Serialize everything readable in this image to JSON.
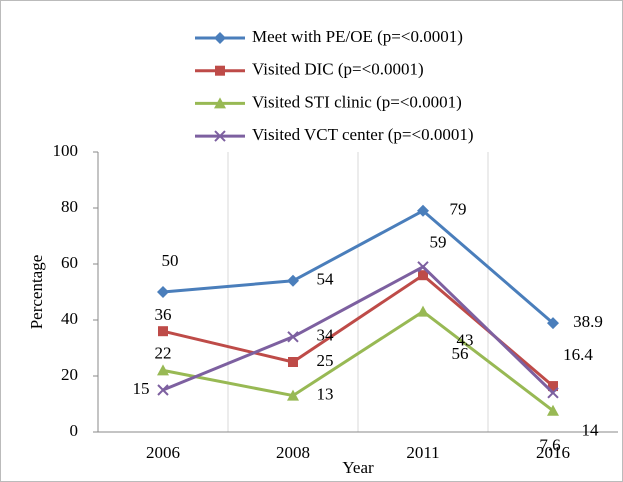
{
  "chart_data": {
    "type": "line",
    "categories": [
      "2006",
      "2008",
      "2011",
      "2016"
    ],
    "series": [
      {
        "name": "Meet with PE/OE (p=<0.0001)",
        "color": "#4a7ebb",
        "marker": "diamond",
        "values": [
          50,
          54,
          79,
          38.9
        ]
      },
      {
        "name": "Visited DIC (p=<0.0001)",
        "color": "#be4b48",
        "marker": "square",
        "values": [
          36,
          25,
          56,
          16.4
        ]
      },
      {
        "name": "Visited STI clinic (p=<0.0001)",
        "color": "#98b954",
        "marker": "triangle",
        "values": [
          22,
          13,
          43,
          7.6
        ]
      },
      {
        "name": "Visited VCT center (p=<0.0001)",
        "color": "#7d60a0",
        "marker": "x",
        "values": [
          15,
          34,
          59,
          14
        ]
      }
    ],
    "ylim": [
      0,
      100
    ],
    "yticks": [
      0,
      20,
      40,
      60,
      80,
      100
    ],
    "y_label": "Percentage",
    "x_label": "Year",
    "grid": true,
    "legend": "top"
  }
}
